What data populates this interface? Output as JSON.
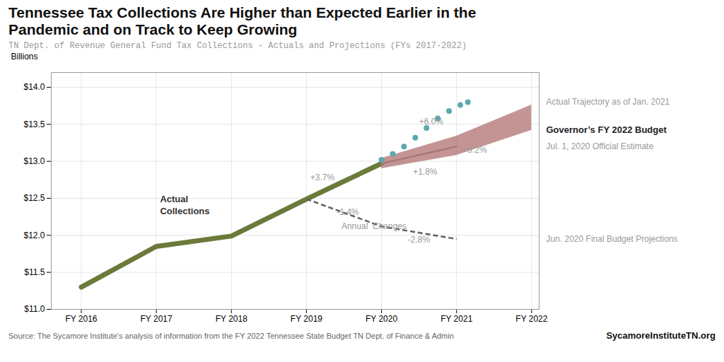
{
  "chart_data": {
    "type": "line",
    "title": "Tennessee Tax Collections Are Higher than Expected Earlier in the\nPandemic and on Track to Keep Growing",
    "subtitle": "TN Dept. of Revenue General Fund Tax Collections - Actuals and Projections (FYs 2017-2022)",
    "ylabel": "Billions",
    "source": "Source:  The Sycamore Institute's analysis of information from the FY 2022 Tennessee State Budget TN Dept.  of Finance & Admin",
    "source_right": "SycamoreInstituteTN.org",
    "xlim": [
      -0.4,
      6.1
    ],
    "xticks": [
      {
        "value": 0,
        "label": "FY 2016"
      },
      {
        "value": 1,
        "label": "FY 2017"
      },
      {
        "value": 2,
        "label": "FY 2018"
      },
      {
        "value": 3,
        "label": "FY 2019"
      },
      {
        "value": 4,
        "label": "FY 2020"
      },
      {
        "value": 5,
        "label": "FY 2021"
      },
      {
        "value": 6,
        "label": "FY 2022"
      }
    ],
    "ylim": [
      11.0,
      14.2
    ],
    "yticks": [
      {
        "value": 11.0,
        "label": "$11.0"
      },
      {
        "value": 11.5,
        "label": "$11.5"
      },
      {
        "value": 12.0,
        "label": "$12.0"
      },
      {
        "value": 12.5,
        "label": "$12.5"
      },
      {
        "value": 13.0,
        "label": "$13.0"
      },
      {
        "value": 13.5,
        "label": "$13.5"
      },
      {
        "value": 14.0,
        "label": "$14.0"
      }
    ],
    "grid": true,
    "series": [
      {
        "name": "Actual Collections",
        "type": "line",
        "line_style": "solid",
        "color": "#6b7a3a",
        "x": [
          0,
          1,
          2,
          3,
          4
        ],
        "values": [
          11.3,
          11.85,
          11.99,
          12.49,
          12.97
        ]
      },
      {
        "name": "Jun. 2020 Final Budget Projections",
        "type": "line",
        "line_style": "dashed",
        "color": "#606060",
        "x": [
          3,
          4,
          5
        ],
        "values": [
          12.49,
          12.12,
          11.95
        ]
      },
      {
        "name": "Jul. 1, 2020 Official Estimate",
        "type": "line",
        "line_style": "solid",
        "color": "#909090",
        "x": [
          4,
          5
        ],
        "values": [
          12.97,
          13.2
        ]
      },
      {
        "name": "Governor’s FY 2022 Budget",
        "type": "area",
        "color": "#b07070",
        "x": [
          4,
          5,
          6
        ],
        "lower": [
          12.9,
          13.08,
          13.42
        ],
        "upper": [
          13.04,
          13.34,
          13.76
        ]
      },
      {
        "name": "Actual Trajectory as of Jan. 2021",
        "type": "scatter",
        "marker": "circle",
        "color": "#5ba8b0",
        "x": [
          4.0,
          4.15,
          4.3,
          4.45,
          4.6,
          4.75,
          4.9,
          5.05,
          5.15
        ],
        "values": [
          13.02,
          13.1,
          13.2,
          13.32,
          13.45,
          13.58,
          13.68,
          13.76,
          13.8
        ]
      }
    ],
    "annotations": [
      "+3.7%",
      "+6.0%",
      "+1.8%",
      "+3.2%",
      "-1.4%",
      "Annual  Changes",
      "-2.8%"
    ]
  }
}
